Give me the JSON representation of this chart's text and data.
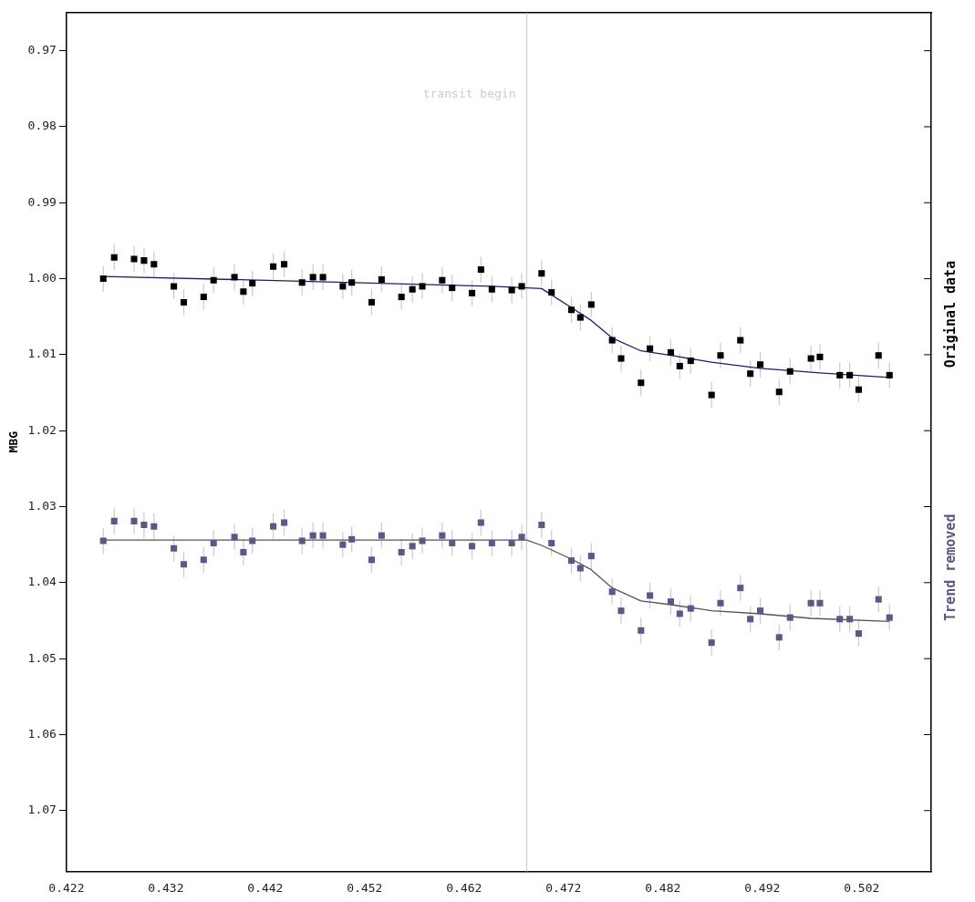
{
  "chart_data": {
    "type": "scatter",
    "ylabel": "MBG",
    "xlim": [
      0.422,
      0.509
    ],
    "xticks": [
      0.422,
      0.432,
      0.442,
      0.452,
      0.462,
      0.472,
      0.482,
      0.492,
      0.502
    ],
    "ylim": [
      1.078,
      0.965
    ],
    "yticks": [
      0.97,
      0.98,
      0.99,
      {
        "value": 1,
        "label": "1.00"
      },
      1.01,
      1.02,
      1.03,
      1.04,
      1.05,
      1.06,
      1.07
    ],
    "grid": false,
    "ref_lines": [
      {
        "axis": "x",
        "value": 0.4683,
        "label": "transit begin",
        "color": "#cccccc"
      }
    ],
    "series": [
      {
        "name": "Original data",
        "marker": "square",
        "color": "#000000",
        "x": [
          0.4257,
          0.4268,
          0.4288,
          0.4298,
          0.4308,
          0.4328,
          0.4338,
          0.4358,
          0.4368,
          0.4389,
          0.4398,
          0.4407,
          0.4428,
          0.4439,
          0.4457,
          0.4468,
          0.4478,
          0.4498,
          0.4507,
          0.4527,
          0.4537,
          0.4557,
          0.4568,
          0.4578,
          0.4598,
          0.4608,
          0.4628,
          0.4637,
          0.4648,
          0.4668,
          0.4678,
          0.4698,
          0.4708,
          0.4728,
          0.4737,
          0.4748,
          0.4769,
          0.4778,
          0.4798,
          0.4807,
          0.4828,
          0.4837,
          0.4848,
          0.4869,
          0.4878,
          0.4898,
          0.4908,
          0.4918,
          0.4937,
          0.4948,
          0.4969,
          0.4978,
          0.4998,
          0.5008,
          0.5017,
          0.5037,
          0.5048
        ],
        "values": [
          1.0,
          0.9972,
          0.9974,
          0.9976,
          0.9981,
          1.001,
          1.0031,
          1.0024,
          1.0002,
          0.9998,
          1.0017,
          1.0006,
          0.9984,
          0.9981,
          1.0005,
          0.9998,
          0.9998,
          1.001,
          1.0005,
          1.0031,
          1.0001,
          1.0024,
          1.0014,
          1.001,
          1.0002,
          1.0012,
          1.0019,
          0.9988,
          1.0014,
          1.0015,
          1.001,
          0.9993,
          1.0018,
          1.0041,
          1.0051,
          1.0034,
          1.0081,
          1.0105,
          1.0137,
          1.0092,
          1.0097,
          1.0115,
          1.0108,
          1.0153,
          1.0101,
          1.0081,
          1.0125,
          1.0113,
          1.0149,
          1.0122,
          1.0105,
          1.0103,
          1.0127,
          1.0127,
          1.0146,
          1.0101,
          1.0127
        ],
        "errors": [
          0.0017,
          0.0017,
          0.0017,
          0.0017,
          0.0017,
          0.0017,
          0.0017,
          0.0017,
          0.0017,
          0.0017,
          0.0017,
          0.0017,
          0.0017,
          0.0017,
          0.0017,
          0.0017,
          0.0017,
          0.0017,
          0.0017,
          0.0017,
          0.0017,
          0.0017,
          0.0017,
          0.0017,
          0.0017,
          0.0017,
          0.0017,
          0.0017,
          0.0017,
          0.0017,
          0.0017,
          0.0017,
          0.0017,
          0.0017,
          0.0017,
          0.0017,
          0.0017,
          0.0017,
          0.0017,
          0.0017,
          0.0017,
          0.0017,
          0.0017,
          0.0017,
          0.0017,
          0.0017,
          0.0017,
          0.0017,
          0.0017,
          0.0017,
          0.0017,
          0.0017,
          0.0017,
          0.0017,
          0.0017,
          0.0017,
          0.0017
        ]
      },
      {
        "type": "line",
        "marker": "none",
        "color": "#1c1c80",
        "x": [
          0.4257,
          0.4448,
          0.4648,
          0.4683,
          0.4698,
          0.4728,
          0.4748,
          0.4769,
          0.4798,
          0.4828,
          0.4869,
          0.4918,
          0.4978,
          0.5048
        ],
        "values": [
          0.9997,
          1.0003,
          1.001,
          1.0012,
          1.0013,
          1.0038,
          1.0055,
          1.0078,
          1.0095,
          1.0101,
          1.011,
          1.0118,
          1.0124,
          1.013
        ]
      },
      {
        "name": "Trend removed",
        "marker": "square",
        "color": "#58588a",
        "x": [
          0.4257,
          0.4268,
          0.4288,
          0.4298,
          0.4308,
          0.4328,
          0.4338,
          0.4358,
          0.4368,
          0.4389,
          0.4398,
          0.4407,
          0.4428,
          0.4439,
          0.4457,
          0.4468,
          0.4478,
          0.4498,
          0.4507,
          0.4527,
          0.4537,
          0.4557,
          0.4568,
          0.4578,
          0.4598,
          0.4608,
          0.4628,
          0.4637,
          0.4648,
          0.4668,
          0.4678,
          0.4698,
          0.4708,
          0.4728,
          0.4737,
          0.4748,
          0.4769,
          0.4778,
          0.4798,
          0.4807,
          0.4828,
          0.4837,
          0.4848,
          0.4869,
          0.4878,
          0.4898,
          0.4908,
          0.4918,
          0.4937,
          0.4948,
          0.4969,
          0.4978,
          0.4998,
          0.5008,
          0.5017,
          0.5037,
          0.5048
        ],
        "values": [
          1.0345,
          1.0319,
          1.0319,
          1.0324,
          1.0326,
          1.0355,
          1.0376,
          1.037,
          1.0348,
          1.034,
          1.036,
          1.0345,
          1.0326,
          1.0321,
          1.0345,
          1.0338,
          1.0338,
          1.035,
          1.0343,
          1.037,
          1.0338,
          1.036,
          1.0352,
          1.0345,
          1.0338,
          1.0348,
          1.0352,
          1.0321,
          1.0348,
          1.0348,
          1.034,
          1.0324,
          1.0348,
          1.0371,
          1.0381,
          1.0365,
          1.0412,
          1.0437,
          1.0463,
          1.0417,
          1.0425,
          1.0441,
          1.0434,
          1.0479,
          1.0427,
          1.0407,
          1.0448,
          1.0437,
          1.0472,
          1.0446,
          1.0427,
          1.0427,
          1.0448,
          1.0448,
          1.0467,
          1.0422,
          1.0446
        ],
        "errors": [
          0.0017,
          0.0017,
          0.0017,
          0.0017,
          0.0017,
          0.0017,
          0.0017,
          0.0017,
          0.0017,
          0.0017,
          0.0017,
          0.0017,
          0.0017,
          0.0017,
          0.0017,
          0.0017,
          0.0017,
          0.0017,
          0.0017,
          0.0017,
          0.0017,
          0.0017,
          0.0017,
          0.0017,
          0.0017,
          0.0017,
          0.0017,
          0.0017,
          0.0017,
          0.0017,
          0.0017,
          0.0017,
          0.0017,
          0.0017,
          0.0017,
          0.0017,
          0.0017,
          0.0017,
          0.0017,
          0.0017,
          0.0017,
          0.0017,
          0.0017,
          0.0017,
          0.0017,
          0.0017,
          0.0017,
          0.0017,
          0.0017,
          0.0017,
          0.0017,
          0.0017,
          0.0017,
          0.0017,
          0.0017,
          0.0017,
          0.0017
        ]
      },
      {
        "type": "line",
        "marker": "none",
        "color": "#555555",
        "x": [
          0.4257,
          0.4683,
          0.4698,
          0.4728,
          0.4748,
          0.4769,
          0.4798,
          0.4828,
          0.4869,
          0.4918,
          0.4969,
          0.5048
        ],
        "values": [
          1.0344,
          1.0344,
          1.0351,
          1.0369,
          1.0383,
          1.0407,
          1.0424,
          1.0429,
          1.0437,
          1.0441,
          1.0447,
          1.0451
        ]
      }
    ]
  }
}
